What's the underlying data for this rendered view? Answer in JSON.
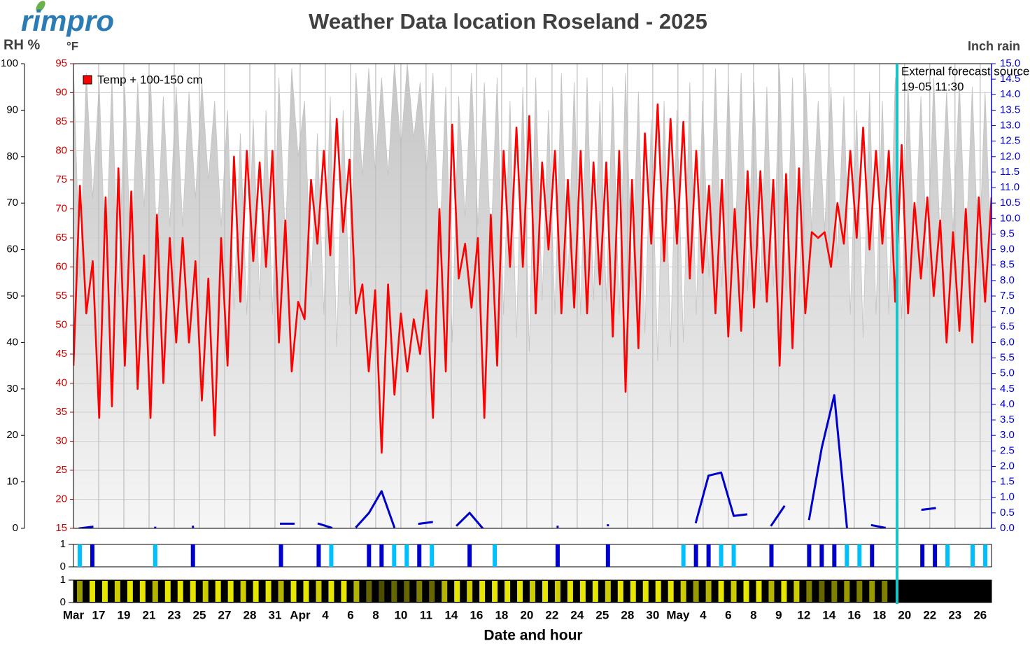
{
  "chart_data": {
    "type": "line",
    "logo": "rimpro",
    "title": "Weather Data location  Roseland - 2025",
    "xlabel": "Date and hour",
    "xlim": [
      0,
      72.9
    ],
    "xticks": [
      {
        "value": 0,
        "label": "Mar"
      },
      {
        "value": 2,
        "label": "17"
      },
      {
        "value": 4,
        "label": "19"
      },
      {
        "value": 6,
        "label": "21"
      },
      {
        "value": 8,
        "label": "23"
      },
      {
        "value": 10,
        "label": "25"
      },
      {
        "value": 12,
        "label": "27"
      },
      {
        "value": 14,
        "label": "28"
      },
      {
        "value": 16,
        "label": "31"
      },
      {
        "value": 18,
        "label": "Apr"
      },
      {
        "value": 20,
        "label": "4"
      },
      {
        "value": 22,
        "label": "6"
      },
      {
        "value": 24,
        "label": "8"
      },
      {
        "value": 26,
        "label": "10"
      },
      {
        "value": 28,
        "label": "11"
      },
      {
        "value": 30,
        "label": "14"
      },
      {
        "value": 32,
        "label": "16"
      },
      {
        "value": 34,
        "label": "18"
      },
      {
        "value": 36,
        "label": "20"
      },
      {
        "value": 38,
        "label": "22"
      },
      {
        "value": 40,
        "label": "24"
      },
      {
        "value": 42,
        "label": "25"
      },
      {
        "value": 44,
        "label": "28"
      },
      {
        "value": 46,
        "label": "30"
      },
      {
        "value": 48,
        "label": "May"
      },
      {
        "value": 50,
        "label": "4"
      },
      {
        "value": 52,
        "label": "6"
      },
      {
        "value": 54,
        "label": "8"
      },
      {
        "value": 56,
        "label": "9"
      },
      {
        "value": 58,
        "label": "12"
      },
      {
        "value": 60,
        "label": "14"
      },
      {
        "value": 62,
        "label": "16"
      },
      {
        "value": 64,
        "label": "18"
      },
      {
        "value": 66,
        "label": "20"
      },
      {
        "value": 68,
        "label": "22"
      },
      {
        "value": 70,
        "label": "23"
      },
      {
        "value": 72,
        "label": "26"
      }
    ],
    "ylabel": "°F",
    "ylim": [
      15,
      95
    ],
    "yticks": [
      15,
      20,
      25,
      30,
      35,
      40,
      45,
      50,
      55,
      60,
      65,
      70,
      75,
      80,
      85,
      90,
      95
    ],
    "rh_label": "RH %",
    "rh_lim": [
      0,
      100
    ],
    "rh_ticks": [
      0,
      10,
      20,
      30,
      40,
      50,
      60,
      70,
      80,
      90,
      100
    ],
    "y2label": "Inch rain",
    "y2lim": [
      0,
      15
    ],
    "y2ticks": [
      {
        "value": 0,
        "label": "0.0"
      },
      0.5,
      {
        "value": 1,
        "label": "1.0"
      },
      1.5,
      {
        "value": 2,
        "label": "2.0"
      },
      2.5,
      {
        "value": 3,
        "label": "3.0"
      },
      3.5,
      {
        "value": 4,
        "label": "4.0"
      },
      4.5,
      {
        "value": 5,
        "label": "5.0"
      },
      5.5,
      {
        "value": 6,
        "label": "6.0"
      },
      6.5,
      {
        "value": 7,
        "label": "7.0"
      },
      7.5,
      {
        "value": 8,
        "label": "8.0"
      },
      8.5,
      {
        "value": 9,
        "label": "9.0"
      },
      9.5,
      {
        "value": 10,
        "label": "10.0"
      },
      10.5,
      {
        "value": 11,
        "label": "11.0"
      },
      11.5,
      {
        "value": 12,
        "label": "12.0"
      },
      12.5,
      {
        "value": 13,
        "label": "13.0"
      },
      13.5,
      {
        "value": 14,
        "label": "14.0"
      },
      14.5,
      {
        "value": 15,
        "label": "15.0"
      }
    ],
    "grid": true,
    "legend": "upper left",
    "series": [
      {
        "name": "Temp + 100-150 cm",
        "color": "#ff0000",
        "values": [
          43,
          74,
          52,
          61,
          34,
          72,
          36,
          77,
          43,
          73,
          39,
          62,
          34,
          69,
          40,
          65,
          47,
          65,
          47,
          61,
          37,
          58,
          31,
          65,
          43,
          79,
          54,
          80,
          61,
          78,
          60,
          80,
          47,
          68,
          42,
          54,
          51,
          75,
          64,
          80,
          62,
          85.5,
          66,
          78.5,
          52,
          57,
          42,
          56,
          28,
          57,
          38,
          52,
          42,
          51,
          45,
          56,
          34,
          70,
          42,
          84.5,
          58,
          64,
          53,
          65,
          34,
          69,
          43,
          80,
          60,
          84,
          60,
          86,
          52,
          78,
          63,
          80,
          52,
          75,
          53,
          80,
          52,
          78,
          57,
          78,
          48,
          80,
          38.5,
          75,
          46,
          83,
          64,
          88,
          61,
          85.5,
          64,
          85,
          58,
          80,
          59,
          74,
          52,
          75,
          48,
          70,
          49,
          76.5,
          53,
          76.5,
          54,
          75,
          43,
          76,
          46,
          77,
          52,
          66,
          65,
          66,
          60,
          71,
          64,
          80,
          65,
          84,
          63,
          80,
          64,
          80,
          54,
          81,
          52,
          71,
          58,
          72,
          55,
          68,
          47,
          66,
          49,
          70,
          47,
          72,
          54,
          72
        ]
      },
      {
        "axis": "rh",
        "color": "#c4c4c4",
        "values": [
          100,
          54,
          98,
          71,
          96,
          56,
          97,
          50,
          95,
          55,
          96,
          69,
          97,
          60,
          93,
          65,
          95,
          65,
          94,
          71,
          96,
          75,
          92,
          65,
          90,
          47,
          85,
          46,
          88,
          49,
          90,
          46,
          97,
          62,
          99,
          80,
          92,
          52,
          85,
          46,
          93,
          39,
          90,
          48,
          98,
          76,
          99,
          77,
          97,
          76,
          100,
          82,
          100,
          84,
          96,
          77,
          98,
          59,
          95,
          40,
          93,
          67,
          98,
          65,
          96,
          60,
          97,
          46,
          92,
          41,
          95,
          38,
          97,
          49,
          90,
          46,
          98,
          52,
          96,
          46,
          97,
          49,
          92,
          49,
          95,
          46,
          98,
          52,
          94,
          42,
          88,
          36,
          92,
          39,
          90,
          40,
          96,
          46,
          92,
          54,
          99,
          52,
          97,
          59,
          98,
          51,
          96,
          51,
          95,
          52,
          99,
          51,
          97,
          50,
          98,
          64,
          92,
          64,
          95,
          58,
          93,
          46,
          90,
          41,
          94,
          46,
          92,
          46,
          97,
          45,
          96,
          58,
          93,
          56,
          97,
          62,
          94,
          64,
          96,
          59,
          95,
          56,
          94,
          56
        ]
      },
      {
        "axis": "y2",
        "color": "#0000cc",
        "values": [
          0,
          0.05,
          null,
          null,
          null,
          null,
          0.02,
          null,
          null,
          0.05,
          null,
          null,
          null,
          null,
          null,
          null,
          0.15,
          0.15,
          null,
          0.15,
          0.02,
          null,
          0.05,
          0.5,
          1.2,
          0.05,
          null,
          0.15,
          0.2,
          null,
          0.1,
          0.5,
          0.02,
          null,
          null,
          null,
          null,
          null,
          0.05,
          null,
          null,
          null,
          0.1,
          null,
          null,
          null,
          null,
          null,
          null,
          0.2,
          1.7,
          1.8,
          0.4,
          0.45,
          null,
          0.1,
          0.7,
          null,
          0.3,
          2.6,
          4.3,
          0.05,
          null,
          0.1,
          0.02,
          null,
          null,
          0.6,
          0.65,
          null,
          null,
          null,
          null
        ]
      }
    ],
    "wetness": {
      "ylim": [
        0,
        1
      ],
      "yticks": [
        0,
        1
      ],
      "color": "#0000cc",
      "light_color": "#00bfff",
      "values": [
        0.5,
        1,
        0,
        0,
        0,
        0,
        0.5,
        0,
        0,
        1,
        0,
        0,
        0,
        0,
        0,
        0,
        1,
        0,
        0,
        1,
        0.5,
        0,
        0,
        1,
        1,
        0.5,
        0.5,
        1,
        0.5,
        0,
        0,
        1,
        0,
        0.5,
        0,
        0,
        0,
        0,
        1,
        0,
        0,
        0,
        1,
        0,
        0,
        0,
        0,
        0,
        0.5,
        1,
        1,
        0.5,
        0.5,
        0,
        0,
        1,
        0,
        0,
        1,
        1,
        1,
        0.5,
        0.5,
        1,
        0,
        0,
        0,
        1,
        1,
        0.5,
        0,
        0.5,
        0.5
      ]
    },
    "sunlight": {
      "ylim": [
        0,
        1
      ],
      "yticks": [
        0,
        1
      ],
      "color": "#ffff00",
      "values": [
        0.6,
        0.9,
        0.9,
        0.8,
        0.9,
        0.9,
        0.7,
        0.9,
        0.9,
        0.9,
        0.8,
        0.9,
        0.9,
        0.8,
        0.9,
        0.9,
        0.7,
        0.9,
        0.9,
        0.8,
        0.9,
        0.9,
        0.7,
        0.4,
        0.3,
        0.4,
        0.4,
        0.5,
        0.4,
        0.7,
        0.9,
        0.8,
        0.9,
        0.9,
        0.9,
        0.9,
        0.8,
        0.9,
        0.8,
        0.9,
        0.9,
        0.9,
        0.8,
        0.9,
        0.9,
        0.9,
        0.9,
        0.9,
        0.8,
        0.6,
        0.7,
        0.9,
        0.8,
        0.9,
        0.9,
        0.7,
        0.9,
        0.8,
        0.5,
        0.4,
        0.5,
        0.6,
        0.5,
        0.6,
        0.5,
        0,
        0,
        0,
        0,
        0,
        0,
        0,
        0
      ]
    },
    "forecast": {
      "x": 65.4,
      "label": "External forecast source",
      "time": "19-05 11:30",
      "color": "#19c3c8"
    }
  }
}
